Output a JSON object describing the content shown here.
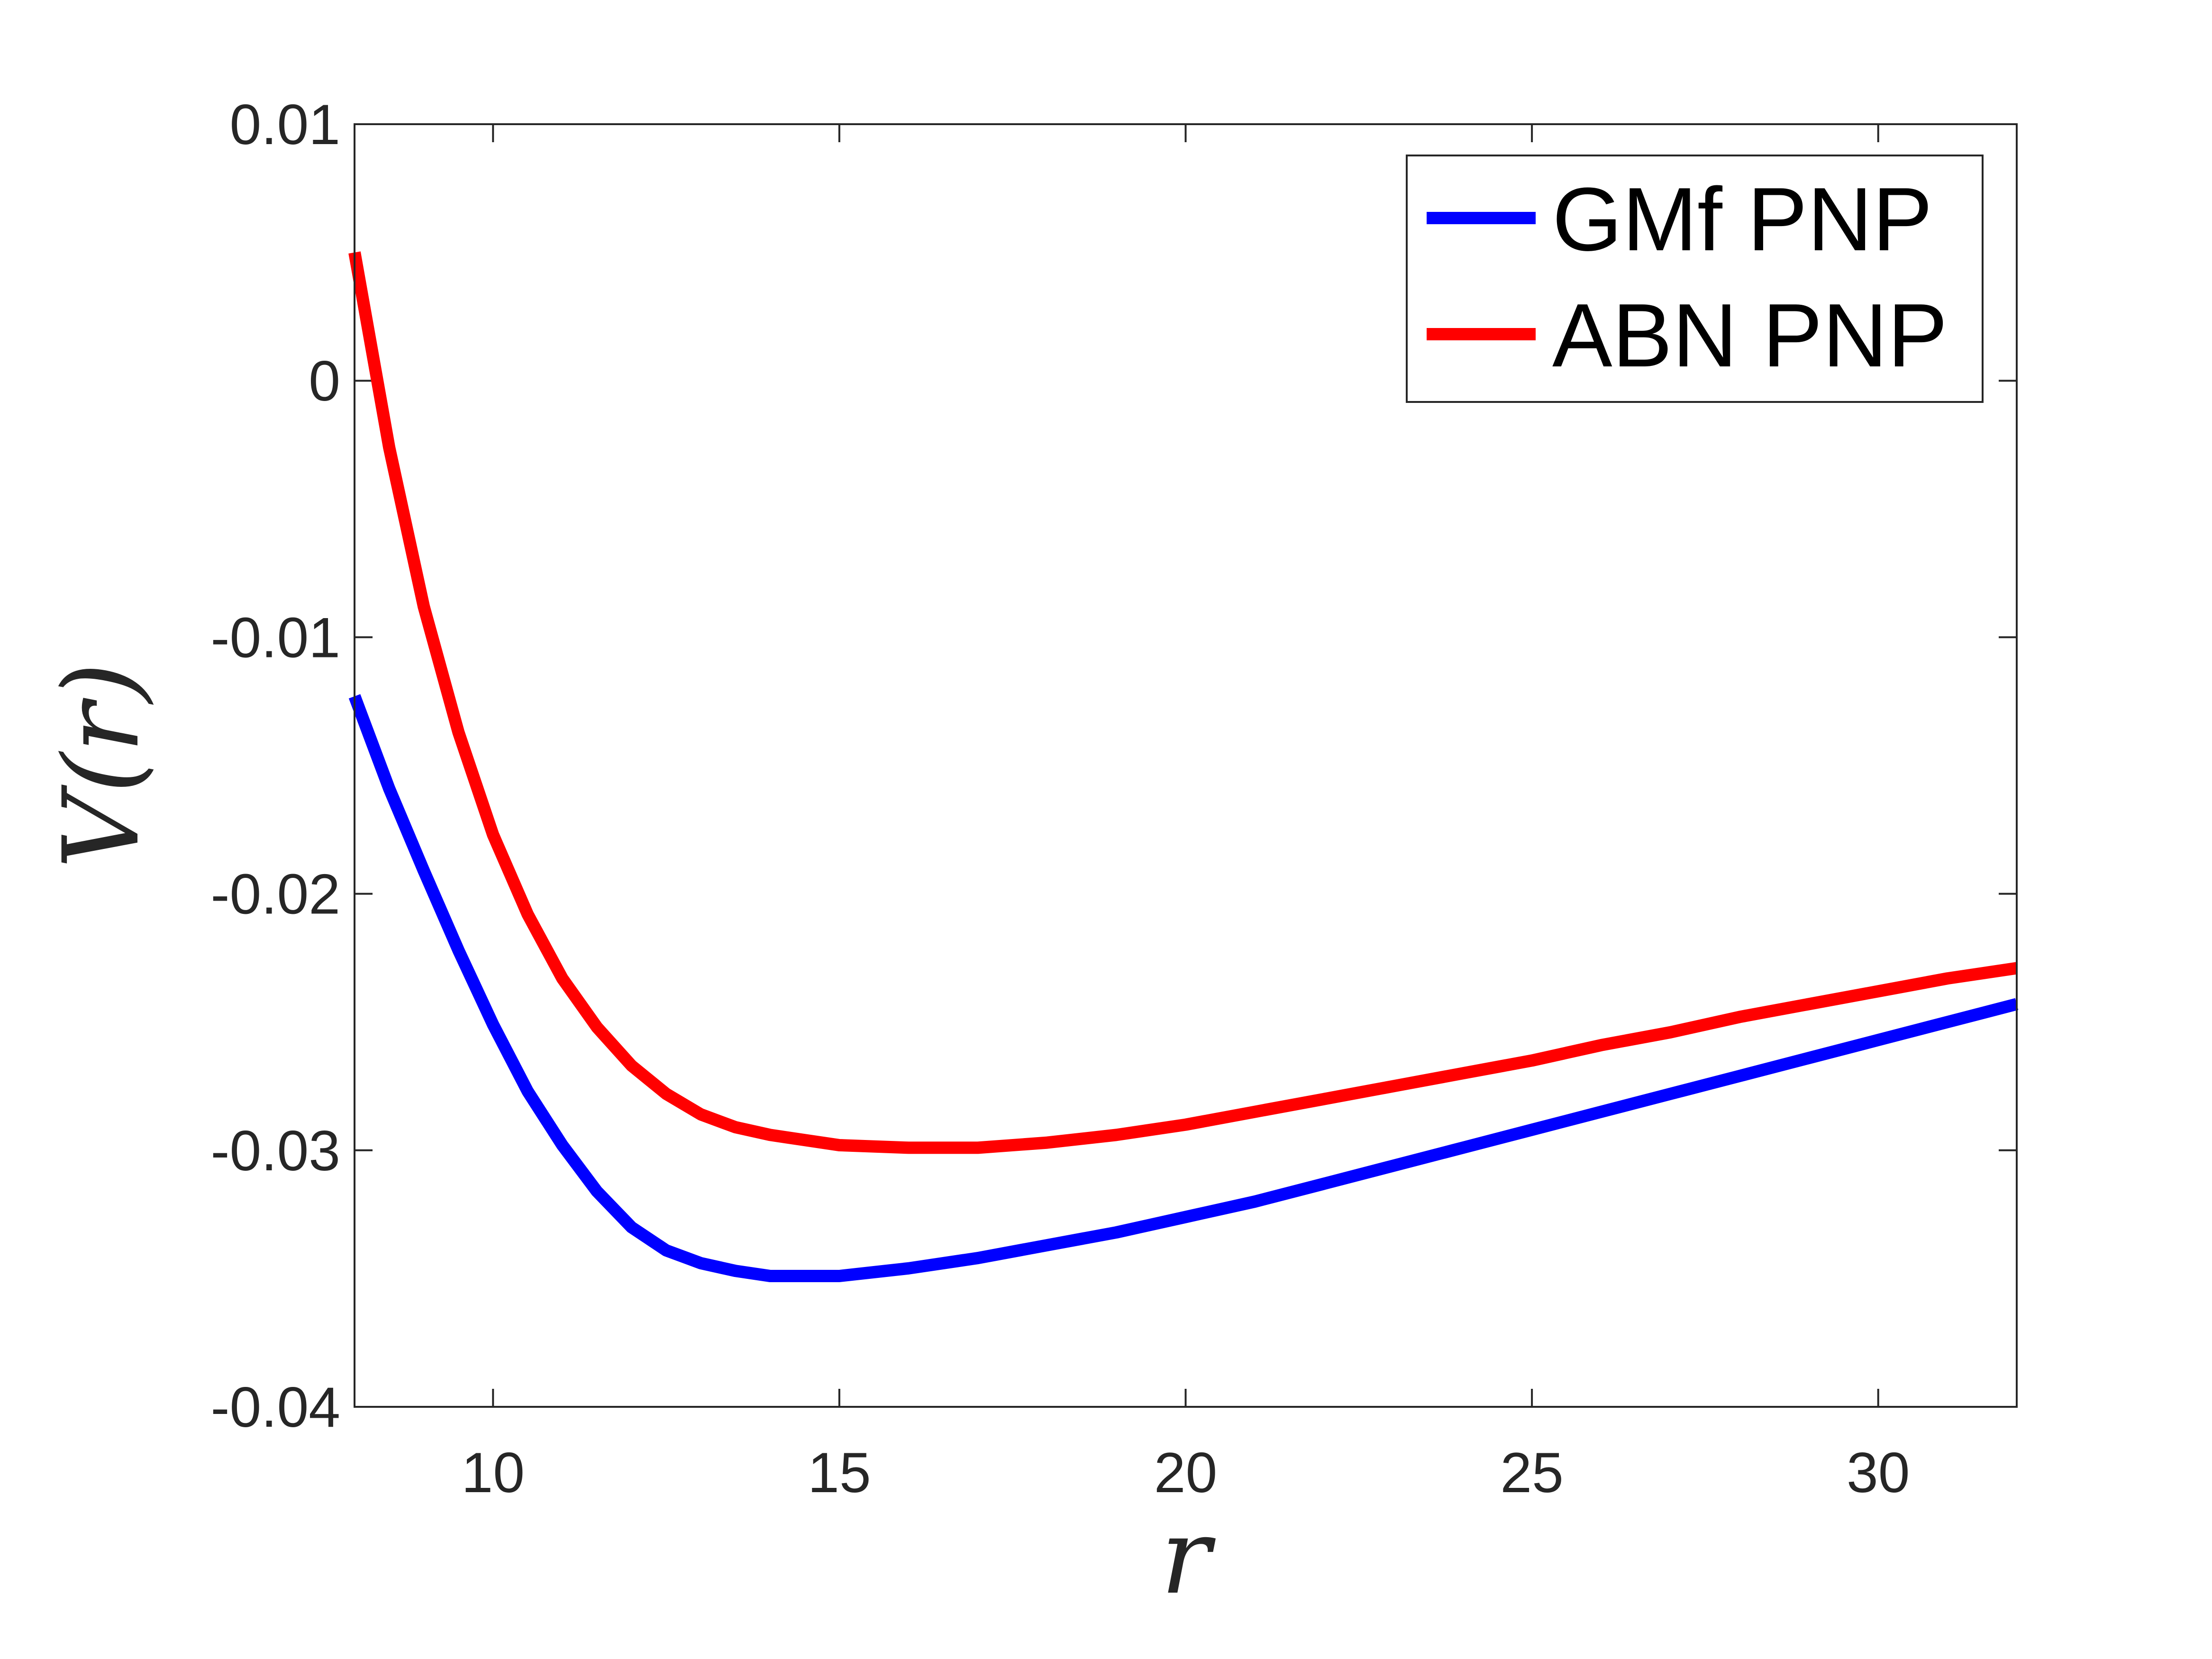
{
  "chart_data": {
    "type": "line",
    "title": "",
    "xlabel": "r",
    "ylabel": "V(r)",
    "xlim": [
      8,
      32
    ],
    "ylim": [
      -0.04,
      0.01
    ],
    "xticks": [
      10,
      15,
      20,
      25,
      30
    ],
    "xtick_labels": [
      "10",
      "15",
      "20",
      "25",
      "30"
    ],
    "yticks": [
      -0.04,
      -0.03,
      -0.02,
      -0.01,
      0,
      0.01
    ],
    "ytick_labels": [
      "-0.04",
      "-0.03",
      "-0.02",
      "-0.01",
      "0",
      "0.01"
    ],
    "grid": false,
    "legend_position": "top-right",
    "series": [
      {
        "name": "GMf PNP",
        "color": "#0000ff",
        "x": [
          8,
          8.5,
          9,
          9.5,
          10,
          10.5,
          11,
          11.5,
          12,
          12.5,
          13,
          13.5,
          14,
          14.5,
          15,
          16,
          17,
          18,
          19,
          20,
          21,
          22,
          23,
          24,
          25,
          26,
          27,
          28,
          29,
          30,
          31,
          32
        ],
        "y": [
          -0.0123,
          -0.0159,
          -0.0191,
          -0.0222,
          -0.0251,
          -0.0277,
          -0.0298,
          -0.0316,
          -0.033,
          -0.0339,
          -0.0344,
          -0.0347,
          -0.0349,
          -0.0349,
          -0.0349,
          -0.0346,
          -0.0342,
          -0.0337,
          -0.0332,
          -0.0326,
          -0.032,
          -0.0313,
          -0.0306,
          -0.0299,
          -0.0292,
          -0.0285,
          -0.0278,
          -0.0271,
          -0.0264,
          -0.0257,
          -0.025,
          -0.0243
        ]
      },
      {
        "name": "ABN PNP",
        "color": "#ff0000",
        "x": [
          8,
          8.5,
          9,
          9.5,
          10,
          10.5,
          11,
          11.5,
          12,
          12.5,
          13,
          13.5,
          14,
          14.5,
          15,
          16,
          16.7,
          17,
          18,
          19,
          20,
          21,
          22,
          23,
          24,
          25,
          26,
          27,
          28,
          29,
          30,
          31,
          32
        ],
        "y": [
          0.005,
          -0.0026,
          -0.0088,
          -0.0137,
          -0.0177,
          -0.0208,
          -0.0233,
          -0.0252,
          -0.0267,
          -0.0278,
          -0.0286,
          -0.0291,
          -0.0294,
          -0.0296,
          -0.0298,
          -0.0299,
          -0.0299,
          -0.0299,
          -0.0297,
          -0.0294,
          -0.029,
          -0.0285,
          -0.028,
          -0.0275,
          -0.027,
          -0.0265,
          -0.0259,
          -0.0254,
          -0.0248,
          -0.0243,
          -0.0238,
          -0.0233,
          -0.0229
        ]
      }
    ]
  }
}
